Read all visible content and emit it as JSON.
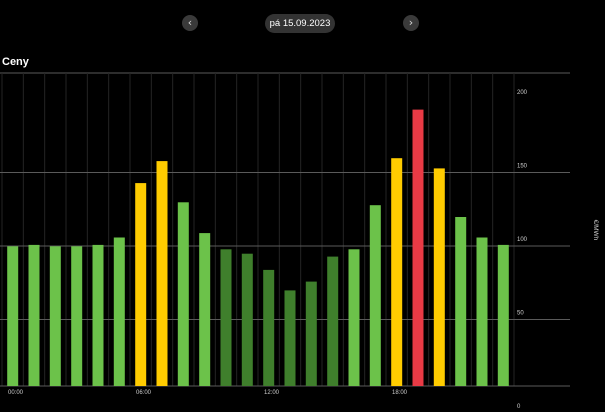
{
  "header": {
    "prev_icon": "‹",
    "next_icon": "›",
    "date_label": "pá 15.09.2023"
  },
  "section_title": "Ceny",
  "colors": {
    "background": "#000000",
    "green_light": "#6cc24a",
    "green_dark": "#3f7f2c",
    "yellow": "#ffcc00",
    "red": "#e83a45",
    "grid_major": "#5a5a5a",
    "grid_minor": "#242424",
    "axis_text": "#cfcfcf"
  },
  "chart_data": {
    "type": "bar",
    "ylabel": "€/MWh",
    "ylim": [
      0,
      200
    ],
    "y_ticks": [
      0,
      50,
      100,
      150,
      200
    ],
    "x_tick_labels": [
      {
        "index": 0,
        "label": "00:00"
      },
      {
        "index": 6,
        "label": "06:00"
      },
      {
        "index": 12,
        "label": "12:00"
      },
      {
        "index": 18,
        "label": "18:00"
      }
    ],
    "categories": [
      "0",
      "1",
      "2",
      "3",
      "4",
      "5",
      "6",
      "7",
      "8",
      "9",
      "10",
      "11",
      "12",
      "13",
      "14",
      "15",
      "16",
      "17",
      "18",
      "19",
      "20",
      "21",
      "22",
      "23"
    ],
    "values": [
      95,
      96,
      95,
      95,
      96,
      101,
      138,
      153,
      125,
      104,
      93,
      90,
      79,
      65,
      71,
      88,
      93,
      123,
      155,
      188,
      148,
      115,
      101,
      96
    ],
    "bar_colors": [
      "green_light",
      "green_light",
      "green_light",
      "green_light",
      "green_light",
      "green_light",
      "yellow",
      "yellow",
      "green_light",
      "green_light",
      "green_dark",
      "green_dark",
      "green_dark",
      "green_dark",
      "green_dark",
      "green_dark",
      "green_light",
      "green_light",
      "yellow",
      "red",
      "yellow",
      "green_light",
      "green_light",
      "green_light"
    ]
  }
}
